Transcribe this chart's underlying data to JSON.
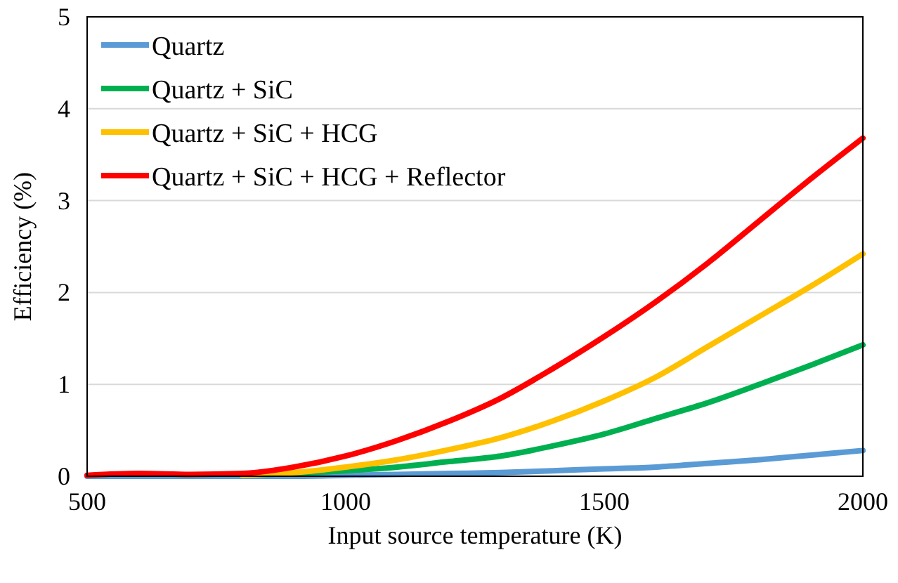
{
  "chart_data": {
    "type": "line",
    "xlabel": "Input source temperature (K)",
    "ylabel": "Efficiency (%)",
    "x": [
      500,
      600,
      700,
      800,
      900,
      1000,
      1100,
      1200,
      1300,
      1400,
      1500,
      1600,
      1700,
      1800,
      1900,
      2000
    ],
    "xlim": [
      500,
      2000
    ],
    "xticks": [
      500,
      1000,
      1500,
      2000
    ],
    "ylim": [
      0,
      5
    ],
    "yticks": [
      0,
      1,
      2,
      3,
      4,
      5
    ],
    "grid": "y",
    "legend": "top left",
    "marker": "none",
    "line_style": "solid",
    "series": [
      {
        "name": "Quartz",
        "color": "#5b9bd5",
        "values": [
          0,
          0,
          0,
          0,
          0,
          0.01,
          0.02,
          0.03,
          0.04,
          0.06,
          0.08,
          0.1,
          0.14,
          0.18,
          0.23,
          0.28
        ]
      },
      {
        "name": "Quartz + SiC",
        "color": "#00b050",
        "values": [
          null,
          null,
          null,
          0.01,
          0.03,
          0.06,
          0.1,
          0.16,
          0.22,
          0.33,
          0.46,
          0.63,
          0.8,
          1.0,
          1.21,
          1.43
        ]
      },
      {
        "name": "Quartz + SiC + HCG",
        "color": "#ffc000",
        "values": [
          null,
          null,
          null,
          0.01,
          0.04,
          0.1,
          0.18,
          0.29,
          0.42,
          0.6,
          0.82,
          1.08,
          1.41,
          1.74,
          2.07,
          2.42
        ]
      },
      {
        "name": "Quartz + SiC + HCG + Reflector",
        "color": "#ff0000",
        "values": [
          0.01,
          0.03,
          0.02,
          0.03,
          0.1,
          0.22,
          0.39,
          0.6,
          0.85,
          1.17,
          1.52,
          1.9,
          2.32,
          2.78,
          3.24,
          3.68
        ]
      }
    ]
  }
}
